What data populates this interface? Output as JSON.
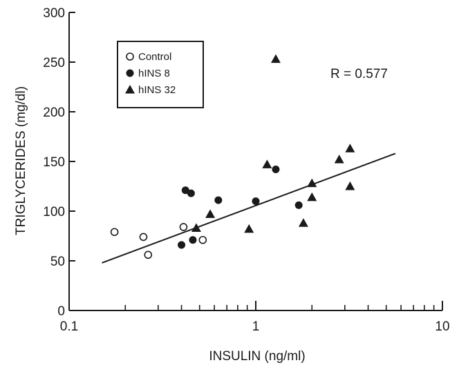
{
  "chart_data": {
    "type": "scatter",
    "xlabel": "INSULIN (ng/ml)",
    "ylabel": "TRIGLYCERIDES (mg/dl)",
    "x_scale": "log",
    "xlim": [
      0.1,
      10
    ],
    "ylim": [
      0,
      300
    ],
    "x_ticks": [
      {
        "value": 0.1,
        "label": "0.1"
      },
      {
        "value": 1,
        "label": "1"
      },
      {
        "value": 10,
        "label": "10"
      }
    ],
    "y_ticks": [
      {
        "value": 0,
        "label": "0"
      },
      {
        "value": 50,
        "label": "50"
      },
      {
        "value": 100,
        "label": "100"
      },
      {
        "value": 150,
        "label": "150"
      },
      {
        "value": 200,
        "label": "200"
      },
      {
        "value": 250,
        "label": "250"
      },
      {
        "value": 300,
        "label": "300"
      }
    ],
    "grid": false,
    "legend_position": "top-left",
    "series": [
      {
        "name": "Control",
        "marker": "open-circle",
        "points": [
          [
            0.175,
            79
          ],
          [
            0.25,
            74
          ],
          [
            0.265,
            56
          ],
          [
            0.41,
            84
          ],
          [
            0.52,
            71
          ]
        ]
      },
      {
        "name": "hINS 8",
        "marker": "filled-circle",
        "points": [
          [
            0.4,
            66
          ],
          [
            0.42,
            121
          ],
          [
            0.45,
            118
          ],
          [
            0.46,
            71
          ],
          [
            0.63,
            111
          ],
          [
            1.0,
            110
          ],
          [
            1.28,
            142
          ],
          [
            1.7,
            106
          ]
        ]
      },
      {
        "name": "hINS 32",
        "marker": "filled-triangle",
        "points": [
          [
            0.48,
            83
          ],
          [
            0.57,
            97
          ],
          [
            0.92,
            82
          ],
          [
            1.15,
            147
          ],
          [
            1.28,
            253
          ],
          [
            1.8,
            88
          ],
          [
            2.0,
            128
          ],
          [
            2.0,
            114
          ],
          [
            2.8,
            152
          ],
          [
            3.2,
            163
          ],
          [
            3.2,
            125
          ]
        ]
      }
    ],
    "trendline": {
      "x": [
        0.15,
        5.6
      ],
      "y": [
        48,
        158
      ]
    },
    "annotation": "R = 0.577"
  }
}
